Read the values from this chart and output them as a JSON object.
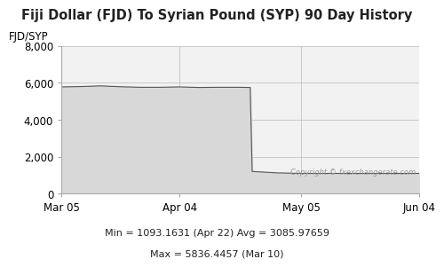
{
  "title": "Fiji Dollar (FJD) To Syrian Pound (SYP) 90 Day History",
  "ylabel": "FJD/SYP",
  "ylim": [
    0,
    8000
  ],
  "yticks": [
    0,
    2000,
    4000,
    6000,
    8000
  ],
  "xtick_labels": [
    "Mar 05",
    "Apr 04",
    "May 05",
    "Jun 04"
  ],
  "line_color": "#555555",
  "fill_color": "#d8d8d8",
  "fill_alpha": 1.0,
  "background_color": "#ffffff",
  "plot_bg_color": "#f2f2f2",
  "copyright_text": "Copyright © fxexchangerate.com",
  "stats_line1": "Min = 1093.1631 (Apr 22) Avg = 3085.97659",
  "stats_line2": "Max = 5836.4457 (Mar 10)",
  "title_fontsize": 10.5,
  "label_fontsize": 8.5,
  "stats_fontsize": 8,
  "x_tick_positions": [
    0,
    30,
    61,
    91
  ],
  "data_x": [
    0,
    5,
    10,
    15,
    20,
    25,
    30,
    35,
    40,
    45,
    48,
    48.5,
    55,
    61,
    70,
    80,
    91
  ],
  "data_y": [
    5780,
    5800,
    5836,
    5790,
    5760,
    5760,
    5780,
    5750,
    5760,
    5760,
    5750,
    1200,
    1120,
    1093,
    1093,
    1093,
    1093
  ]
}
